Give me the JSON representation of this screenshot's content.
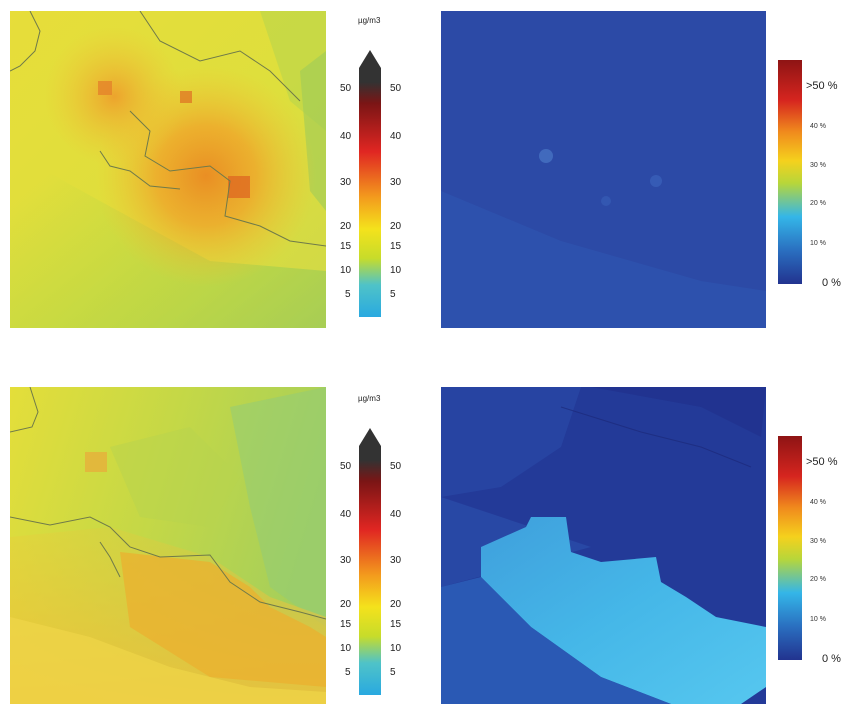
{
  "panels": [
    {
      "id": "top",
      "concentration": {
        "unit": "µg/m3",
        "ticks": [
          "50",
          "40",
          "30",
          "20",
          "15",
          "10",
          "5"
        ],
        "tick_values": [
          50,
          40,
          30,
          20,
          15,
          10,
          5
        ]
      },
      "share": {
        "top_label": ">50 %",
        "mid_labels": [
          "40 %",
          "30 %",
          "20 %",
          "10 %"
        ],
        "bottom_label": "0 %",
        "level_values": [
          50,
          40,
          30,
          20,
          10,
          0
        ]
      }
    },
    {
      "id": "bottom",
      "concentration": {
        "unit": "µg/m3",
        "ticks": [
          "50",
          "40",
          "30",
          "20",
          "15",
          "10",
          "5"
        ],
        "tick_values": [
          50,
          40,
          30,
          20,
          15,
          10,
          5
        ]
      },
      "share": {
        "top_label": ">50 %",
        "mid_labels": [
          "40 %",
          "30 %",
          "20 %",
          "10 %"
        ],
        "bottom_label": "0 %",
        "level_values": [
          50,
          40,
          30,
          20,
          10,
          0
        ]
      }
    }
  ],
  "colors": {
    "concentration_scale": [
      "#29a9e0",
      "#4fc3c8",
      "#c7dc2a",
      "#f4e21c",
      "#f39a1d",
      "#e02622",
      "#7b1515",
      "#333333"
    ],
    "share_scale": [
      "#22338f",
      "#2a6fc0",
      "#34b6e8",
      "#b7d63a",
      "#f5d11d",
      "#f08a1d",
      "#d6251f",
      "#8e1414"
    ],
    "map_background_yellow": "#e6df37",
    "map_background_blue": "#2c4aa8"
  }
}
